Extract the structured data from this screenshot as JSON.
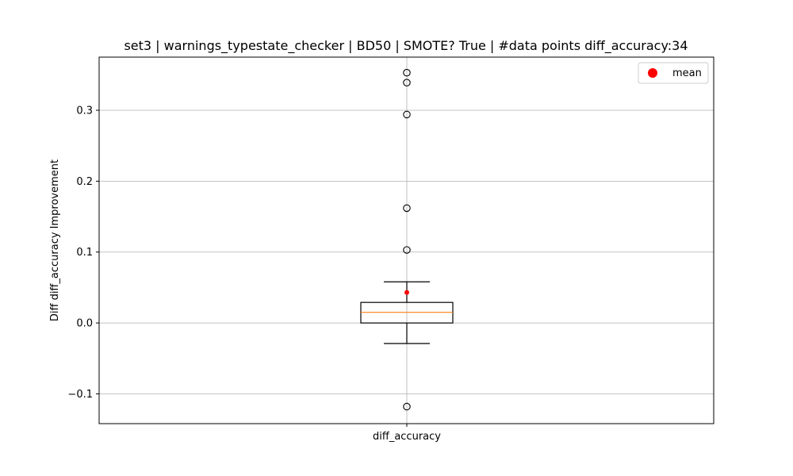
{
  "chart_data": {
    "type": "boxplot",
    "title": "set3 | warnings_typestate_checker | BD50 | SMOTE? True | #data points diff_accuracy:34",
    "xlabel": "",
    "ylabel": "Diff diff_accuracy Improvement",
    "categories": [
      "diff_accuracy"
    ],
    "ylim": [
      -0.142,
      0.375
    ],
    "yticks": [
      -0.1,
      0.0,
      0.1,
      0.2,
      0.3
    ],
    "ytick_labels": [
      "−0.1",
      "0.0",
      "0.1",
      "0.2",
      "0.3"
    ],
    "grid": true,
    "legend": {
      "position": "top-right",
      "entries": [
        {
          "label": "mean",
          "color": "#ff0000",
          "marker": "circle"
        }
      ]
    },
    "box": {
      "whisker_low": -0.029,
      "q1": 0.0,
      "median": 0.015,
      "q3": 0.029,
      "whisker_high": 0.058,
      "mean": 0.043,
      "outliers": [
        0.353,
        0.339,
        0.294,
        0.162,
        0.103,
        -0.118
      ]
    },
    "colors": {
      "box": "#000000",
      "median": "#ff7f0e",
      "mean": "#ff0000",
      "grid": "#b0b0b0"
    }
  }
}
